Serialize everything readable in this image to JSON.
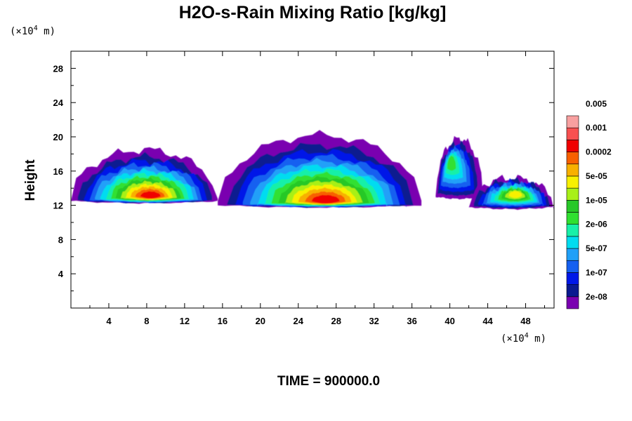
{
  "chart_data": {
    "type": "heatmap",
    "title": "H2O-s-Rain Mixing Ratio [kg/kg]",
    "ylabel": "Height",
    "x_unit_prefix": "(×10",
    "x_unit_exp": "4",
    "x_unit_suffix": " m)",
    "y_unit_prefix": "(×10",
    "y_unit_exp": "4",
    "y_unit_suffix": " m)",
    "xlim": [
      0,
      51
    ],
    "ylim": [
      0,
      30
    ],
    "x_ticks": [
      4,
      8,
      12,
      16,
      20,
      24,
      28,
      32,
      36,
      40,
      44,
      48
    ],
    "y_ticks": [
      4,
      8,
      12,
      16,
      20,
      24,
      28
    ],
    "footer": "TIME = 900000.0",
    "colorbar": {
      "colors": [
        "#7a00b0",
        "#0a1a90",
        "#0018e8",
        "#1560f0",
        "#20a0f8",
        "#00dcf0",
        "#18f0a8",
        "#30e030",
        "#28c828",
        "#a8f018",
        "#f8f000",
        "#f8b000",
        "#f86000",
        "#f00000",
        "#f85050",
        "#f8a0a0"
      ],
      "labels": [
        "2e-08",
        "1e-07",
        "5e-07",
        "2e-06",
        "1e-05",
        "5e-05",
        "0.0002",
        "0.001",
        "0.005"
      ],
      "label_at_boundary": [
        1,
        3,
        5,
        7,
        9,
        11,
        13,
        15,
        17
      ]
    },
    "regions": [
      {
        "name": "west-cloud",
        "x": [
          0,
          15.5
        ],
        "z_base": 12.5,
        "z_top": 18.5,
        "peak_level": 13,
        "peak_x": 8.5,
        "peak_z": 13.2
      },
      {
        "name": "central-cloud",
        "x": [
          15.5,
          37
        ],
        "z_base": 12.0,
        "z_top": 20.2,
        "peak_level": 13,
        "peak_x": 27,
        "peak_z": 12.6
      },
      {
        "name": "east-tower",
        "x": [
          38.5,
          43.5
        ],
        "z_base": 13.0,
        "z_top": 19.8,
        "peak_level": 7,
        "peak_x": 40,
        "peak_z": 17.5
      },
      {
        "name": "east-layer",
        "x": [
          42,
          51
        ],
        "z_base": 11.8,
        "z_top": 15.2,
        "peak_level": 10,
        "peak_x": 47,
        "peak_z": 13.5
      }
    ]
  }
}
